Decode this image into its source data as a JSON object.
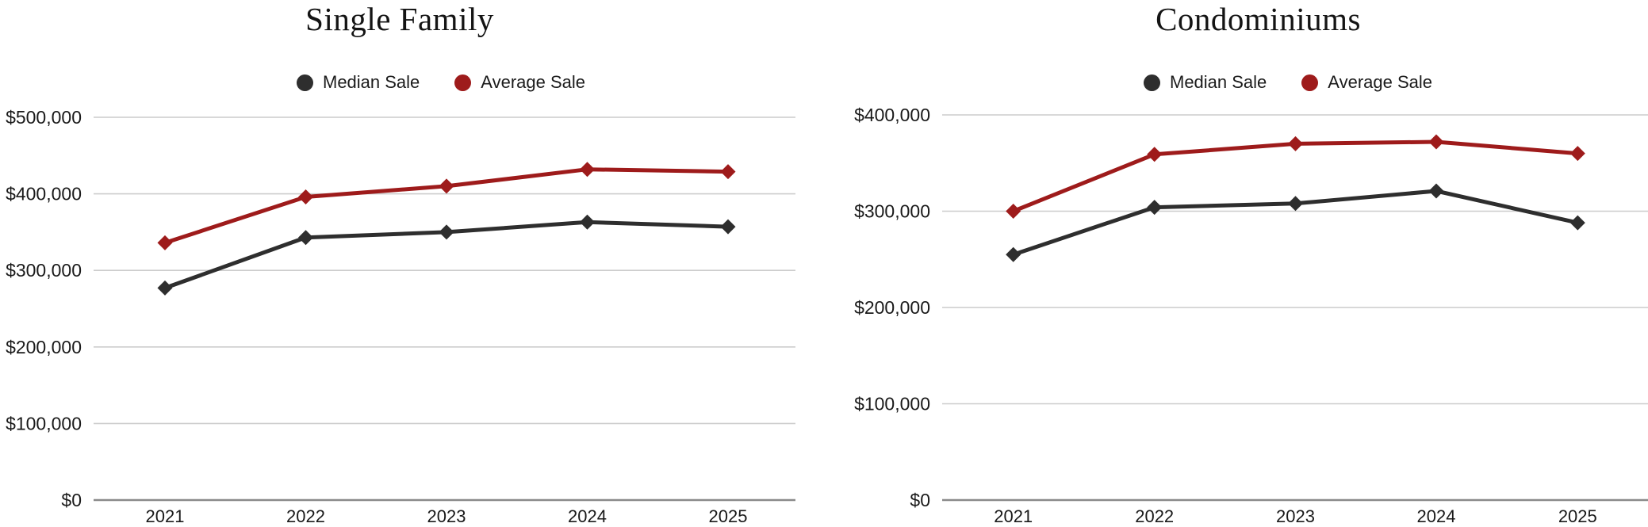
{
  "page": {
    "background": "#ffffff"
  },
  "colors": {
    "median_series": "#2e2e2e",
    "average_series": "#9e1b1b",
    "gridline": "#cccccc",
    "zero_axis": "#8a8a8a",
    "tick_text": "#1a1a1a",
    "title_text": "#141414"
  },
  "charts": [
    {
      "title": "Single Family",
      "chart_data": {
        "type": "line",
        "categories": [
          "2021",
          "2022",
          "2023",
          "2024",
          "2025"
        ],
        "series": [
          {
            "name": "Median Sale",
            "color": "#2e2e2e",
            "values": [
              277000,
              343000,
              350000,
              363000,
              357000
            ]
          },
          {
            "name": "Average Sale",
            "color": "#9e1b1b",
            "values": [
              336000,
              396000,
              410000,
              432000,
              429000
            ]
          }
        ],
        "xlabel": "",
        "ylabel": "",
        "ylim": [
          0,
          500000
        ],
        "ytick_step": 100000,
        "ytick_labels": [
          "$0",
          "$100,000",
          "$200,000",
          "$300,000",
          "$400,000",
          "$500,000"
        ],
        "grid": "horizontal",
        "legend_position": "top",
        "marker": "diamond"
      }
    },
    {
      "title": "Condominiums",
      "chart_data": {
        "type": "line",
        "categories": [
          "2021",
          "2022",
          "2023",
          "2024",
          "2025"
        ],
        "series": [
          {
            "name": "Median Sale",
            "color": "#2e2e2e",
            "values": [
              255000,
              304000,
              308000,
              321000,
              288000
            ]
          },
          {
            "name": "Average Sale",
            "color": "#9e1b1b",
            "values": [
              300000,
              359000,
              370000,
              372000,
              360000
            ]
          }
        ],
        "xlabel": "",
        "ylabel": "",
        "ylim": [
          0,
          400000
        ],
        "ytick_step": 100000,
        "ytick_labels": [
          "$0",
          "$100,000",
          "$200,000",
          "$300,000",
          "$400,000"
        ],
        "grid": "horizontal",
        "legend_position": "top",
        "marker": "diamond"
      }
    }
  ]
}
